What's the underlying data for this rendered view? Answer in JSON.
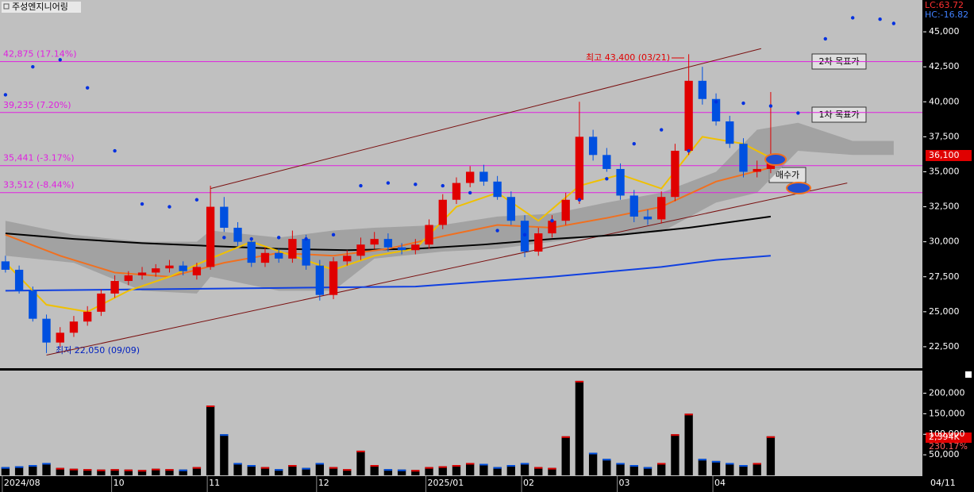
{
  "chart_data": {
    "type": "candlestick",
    "title": "주성엔지니어링",
    "lc_label": "LC:63.72",
    "hc_label": "HC:-16.82",
    "last_price_label": "36,100",
    "cursor_date": "04/11",
    "volume_label": "2,394K",
    "volume_ratio_label": "230.17%",
    "annotations": {
      "high": "최고 43,400 (03/21)",
      "low": "최저 22,050 (09/09)",
      "target2": "2차 목표가",
      "target1": "1차 목표가",
      "buy": "매수가"
    },
    "up_color": "#e00000",
    "down_color": "#0050e0",
    "xlim": [
      -0.4,
      67.1
    ],
    "categories": [
      "2024/08",
      null,
      null,
      null,
      null,
      null,
      null,
      null,
      "10",
      null,
      null,
      null,
      null,
      null,
      null,
      "11",
      null,
      null,
      null,
      null,
      null,
      null,
      null,
      "12",
      null,
      null,
      null,
      null,
      null,
      null,
      null,
      "2025/01",
      null,
      null,
      null,
      null,
      null,
      null,
      "02",
      null,
      null,
      null,
      null,
      null,
      null,
      "03",
      null,
      null,
      null,
      null,
      null,
      null,
      "04",
      null,
      null,
      null,
      null
    ],
    "open": [
      28600,
      28000,
      26500,
      24500,
      22800,
      23500,
      24300,
      25000,
      26300,
      27200,
      27600,
      27800,
      28100,
      28300,
      27600,
      28200,
      32500,
      31000,
      30000,
      28500,
      29200,
      28800,
      30200,
      28300,
      26200,
      28600,
      29000,
      29800,
      30200,
      29600,
      29400,
      29800,
      31200,
      33000,
      34200,
      35000,
      34300,
      33200,
      31500,
      29300,
      30600,
      31500,
      33000,
      37500,
      36200,
      35200,
      33300,
      31800,
      31600,
      33200,
      36500,
      41500,
      40200,
      38600,
      37000,
      35000,
      35200
    ],
    "high": [
      29000,
      28300,
      26800,
      24800,
      23900,
      24700,
      25400,
      26600,
      27600,
      27900,
      28200,
      28400,
      28700,
      28600,
      28500,
      34000,
      33200,
      31400,
      30300,
      29600,
      29500,
      30800,
      30500,
      28700,
      28900,
      29400,
      30300,
      30700,
      30600,
      29900,
      30200,
      31600,
      33400,
      34600,
      35400,
      35500,
      34700,
      33600,
      31900,
      31000,
      31900,
      33500,
      40000,
      38000,
      36700,
      35600,
      33700,
      32300,
      33600,
      37000,
      43400,
      42500,
      40600,
      39000,
      37400,
      35800,
      40700
    ],
    "low": [
      27800,
      26300,
      24300,
      22050,
      22500,
      23200,
      24000,
      24700,
      26000,
      26900,
      27300,
      27500,
      27800,
      27600,
      27300,
      28000,
      30700,
      29700,
      28200,
      28200,
      28500,
      28500,
      28000,
      25800,
      25900,
      28300,
      28700,
      29500,
      29300,
      29100,
      29100,
      29500,
      30900,
      32700,
      33900,
      34000,
      33000,
      31200,
      28900,
      29000,
      30300,
      31200,
      32700,
      35800,
      35000,
      33000,
      31400,
      31200,
      31300,
      32900,
      36200,
      39800,
      38300,
      36700,
      34600,
      34600,
      34900
    ],
    "close": [
      28000,
      26500,
      24500,
      22800,
      23500,
      24300,
      25000,
      26300,
      27200,
      27600,
      27800,
      28100,
      28300,
      27900,
      28200,
      32500,
      31000,
      30000,
      28500,
      29200,
      28800,
      30200,
      28300,
      26200,
      28600,
      29000,
      29800,
      30200,
      29600,
      29400,
      29800,
      31200,
      33000,
      34200,
      35000,
      34300,
      33200,
      31500,
      29300,
      30600,
      31500,
      33000,
      37500,
      36200,
      35200,
      33300,
      31800,
      31600,
      33200,
      36500,
      41500,
      40200,
      38600,
      37000,
      35000,
      35200,
      36100
    ],
    "volume": [
      20000,
      22000,
      25000,
      30000,
      18000,
      16000,
      15000,
      14000,
      15000,
      14000,
      13000,
      16000,
      15000,
      14000,
      20000,
      170000,
      100000,
      30000,
      25000,
      20000,
      15000,
      25000,
      18000,
      30000,
      20000,
      15000,
      60000,
      25000,
      15000,
      14000,
      13000,
      20000,
      22000,
      25000,
      30000,
      28000,
      20000,
      25000,
      30000,
      20000,
      18000,
      95000,
      230000,
      55000,
      40000,
      30000,
      25000,
      20000,
      30000,
      100000,
      150000,
      40000,
      35000,
      30000,
      25000,
      30000,
      95000
    ],
    "ylim": [
      20966,
      47273
    ],
    "yticks": [
      {
        "value": 22500,
        "label": "22,500"
      },
      {
        "value": 25000,
        "label": "25,000"
      },
      {
        "value": 27500,
        "label": "27,500"
      },
      {
        "value": 30000,
        "label": "30,000"
      },
      {
        "value": 32500,
        "label": "32,500"
      },
      {
        "value": 35000,
        "label": "35,000"
      },
      {
        "value": 37500,
        "label": "37,500"
      },
      {
        "value": 40000,
        "label": "40,000"
      },
      {
        "value": 42500,
        "label": "42,500"
      },
      {
        "value": 45000,
        "label": "45,000"
      }
    ],
    "y2lim": [
      0,
      255000
    ],
    "y2ticks": [
      {
        "value": 50000,
        "label": "50,000"
      },
      {
        "value": 100000,
        "label": "100,000"
      },
      {
        "value": 150000,
        "label": "150,000"
      },
      {
        "value": 200000,
        "label": "200,000"
      }
    ],
    "levels": [
      {
        "value": 42875,
        "label": "42,875 (17.14%)"
      },
      {
        "value": 39235,
        "label": "39,235 (7.20%)"
      },
      {
        "value": 35441,
        "label": "35,441 (-3.17%)"
      },
      {
        "value": 33512,
        "label": "33,512 (-8.44%)"
      }
    ],
    "level_color": "#e020e0",
    "lines": [
      {
        "color": "#1040e0",
        "x": [
          0,
          10,
          20,
          30,
          40,
          48,
          52,
          56
        ],
        "values": [
          26500,
          26600,
          26700,
          26800,
          27500,
          28200,
          28700,
          29000
        ]
      },
      {
        "color": "#000000",
        "x": [
          0,
          5,
          10,
          15,
          20,
          25,
          30,
          35,
          40,
          45,
          50,
          56
        ],
        "values": [
          30600,
          30200,
          29900,
          29700,
          29500,
          29400,
          29500,
          29800,
          30200,
          30500,
          31000,
          31800
        ]
      },
      {
        "color": "#f07020",
        "x": [
          0,
          4,
          8,
          12,
          16,
          20,
          24,
          28,
          32,
          36,
          40,
          44,
          48,
          52,
          56
        ],
        "values": [
          30500,
          29000,
          27800,
          27500,
          28500,
          29200,
          29000,
          29500,
          30400,
          31200,
          31000,
          31700,
          32500,
          34300,
          35300
        ]
      },
      {
        "color": "#f0c000",
        "x": [
          0,
          3,
          6,
          9,
          12,
          15,
          18,
          21,
          24,
          27,
          30,
          33,
          36,
          39,
          42,
          45,
          48,
          51,
          54,
          56
        ],
        "values": [
          28500,
          25500,
          25000,
          26500,
          27500,
          28800,
          30000,
          29000,
          28000,
          29000,
          29500,
          32500,
          33500,
          31500,
          34000,
          34800,
          33800,
          37500,
          37000,
          36000
        ]
      }
    ],
    "sar": {
      "color": "#0030e0",
      "x": [
        0,
        2,
        4,
        6,
        8,
        10,
        12,
        14,
        16,
        18,
        20,
        22,
        24,
        26,
        28,
        30,
        32,
        34,
        36,
        38,
        40,
        42,
        44,
        46,
        48,
        50,
        52,
        54,
        56,
        58,
        60,
        62,
        64,
        65
      ],
      "values": [
        40500,
        42500,
        43000,
        41000,
        36500,
        32700,
        32500,
        33000,
        30300,
        30200,
        30300,
        30200,
        30500,
        34000,
        34200,
        34100,
        34000,
        33500,
        30800,
        30500,
        31500,
        33000,
        34500,
        37000,
        38000,
        36500,
        40000,
        39900,
        39700,
        39200,
        44500,
        46000,
        45900,
        45600
      ]
    },
    "cloud": {
      "color": "#9a9a9a",
      "x": [
        0,
        5,
        10,
        14,
        15,
        20,
        24,
        27,
        32,
        36,
        40,
        44,
        48,
        52,
        55,
        58,
        62,
        65
      ],
      "upper": [
        31500,
        30500,
        30000,
        30000,
        30800,
        30300,
        30800,
        31000,
        31200,
        31800,
        32000,
        32800,
        33500,
        35000,
        38000,
        38500,
        37200,
        37200
      ],
      "lower": [
        29000,
        28500,
        26500,
        26300,
        27500,
        26500,
        26500,
        28800,
        29300,
        29500,
        30000,
        30500,
        30700,
        32800,
        33500,
        36500,
        36200,
        36200
      ]
    },
    "trendlines": [
      {
        "color": "#7a1010",
        "x": [
          15,
          55.3
        ],
        "values": [
          33800,
          43800
        ]
      },
      {
        "color": "#7a1010",
        "x": [
          3,
          61.6
        ],
        "values": [
          21900,
          34200
        ]
      }
    ]
  }
}
